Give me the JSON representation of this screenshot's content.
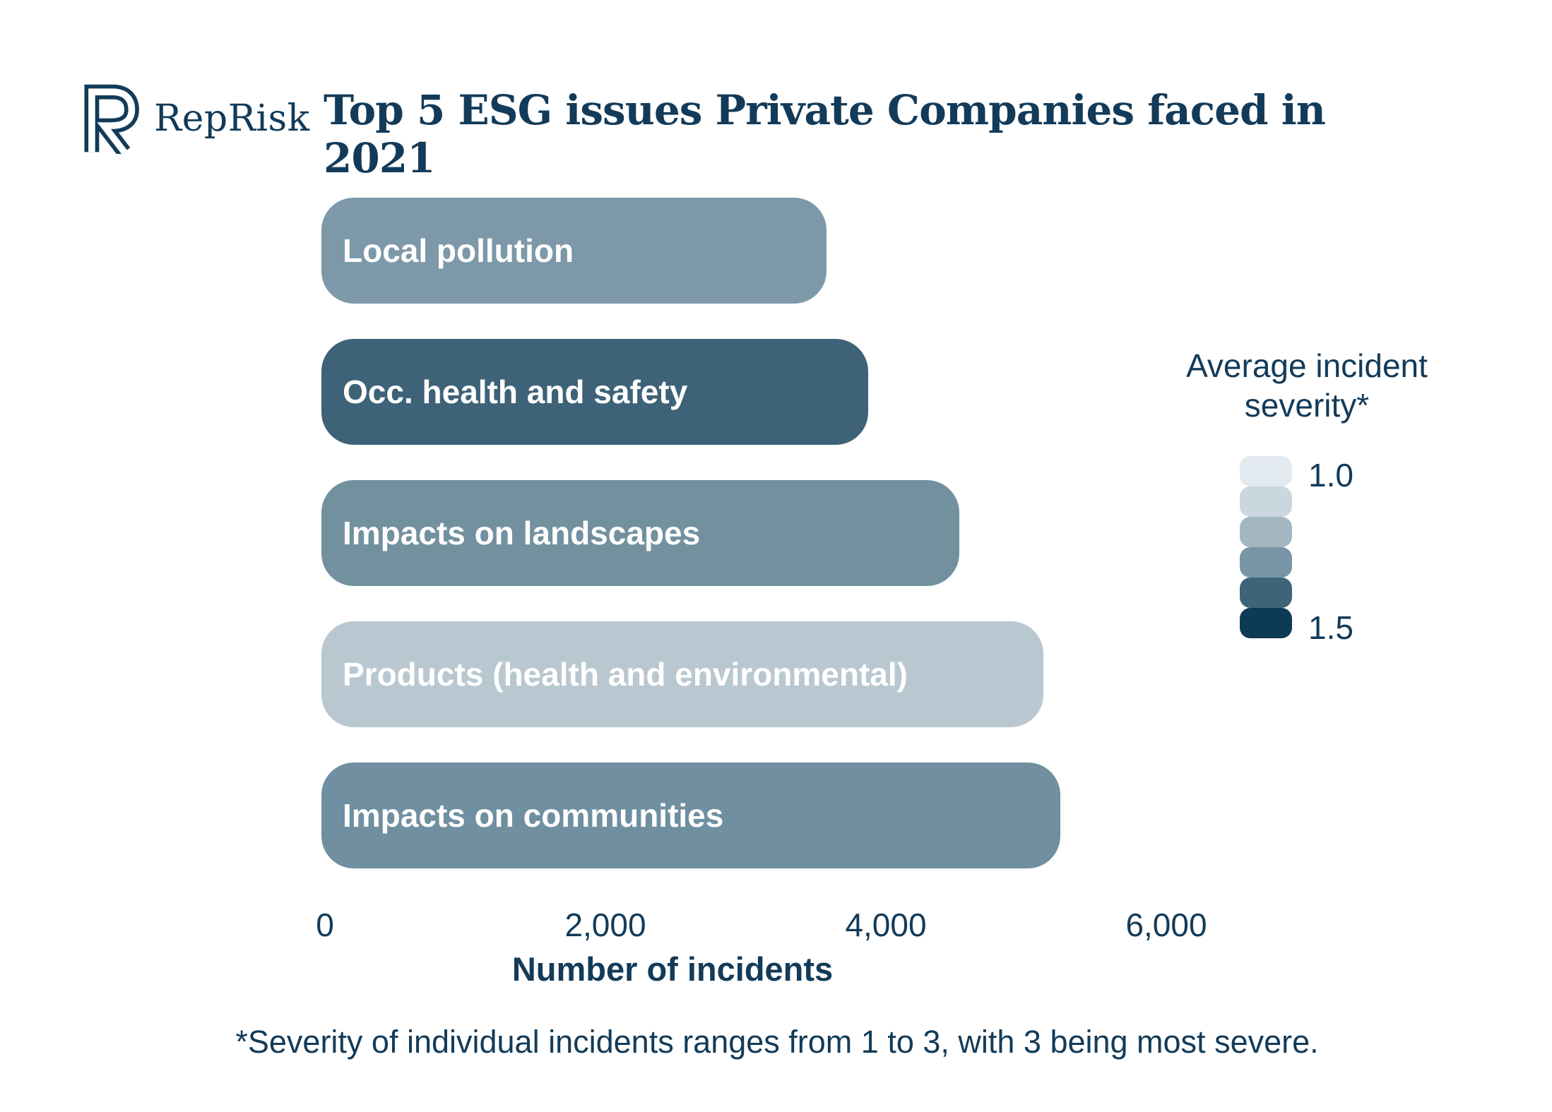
{
  "header": {
    "logo_text": "RepRisk",
    "title": "Top 5 ESG issues Private Companies faced in 2021"
  },
  "colors": {
    "text_navy": "#133B59",
    "bar_label": "#FFFFFF"
  },
  "chart_data": {
    "type": "bar",
    "orientation": "horizontal",
    "title": "Top 5 ESG issues Private Companies faced in 2021",
    "categories": [
      "Local pollution",
      "Occ. health and safety",
      "Impacts on landscapes",
      "Products (health and environmental)",
      "Impacts on communities"
    ],
    "values": [
      3600,
      3900,
      4550,
      5150,
      5270
    ],
    "bar_colors": [
      "#7D98A8",
      "#3E6277",
      "#73909F",
      "#B9C7D0",
      "#708FA0"
    ],
    "xlabel": "Number of incidents",
    "x_ticks": [
      0,
      2000,
      4000,
      6000
    ],
    "x_tick_labels": [
      "0",
      "2,000",
      "4,000",
      "6,000"
    ],
    "xlim": [
      0,
      6300
    ],
    "grid": false,
    "legend": {
      "position": "right",
      "title": "Average incident severity*",
      "min_label": "1.0",
      "max_label": "1.5",
      "swatches": [
        "#E3EAEF",
        "#CBD7DE",
        "#A2B7C2",
        "#7795A5",
        "#3E6478",
        "#0D3A54"
      ]
    },
    "footnote": "*Severity of individual incidents ranges from 1 to 3, with 3 being most severe."
  }
}
